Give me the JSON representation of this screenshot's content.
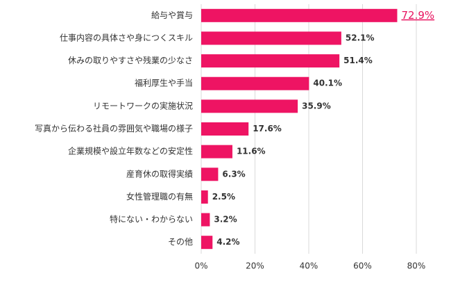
{
  "chart_data": {
    "type": "bar",
    "orientation": "horizontal",
    "categories": [
      "給与や賞与",
      "仕事内容の具体さや身につくスキル",
      "休みの取りやすさや残業の少なさ",
      "福利厚生や手当",
      "リモートワークの実施状況",
      "写真から伝わる社員の雰囲気や職場の様子",
      "企業規模や設立年数などの安定性",
      "産育休の取得実績",
      "女性管理職の有無",
      "特にない・わからない",
      "その他"
    ],
    "values": [
      72.9,
      52.1,
      51.4,
      40.1,
      35.9,
      17.6,
      11.6,
      6.3,
      2.5,
      3.2,
      4.2
    ],
    "value_labels": [
      "72.9%",
      "52.1%",
      "51.4%",
      "40.1%",
      "35.9%",
      "17.6%",
      "11.6%",
      "6.3%",
      "2.5%",
      "3.2%",
      "4.2%"
    ],
    "color": "#ee1463",
    "xlim": [
      0,
      80
    ],
    "xticks": [
      {
        "value": 0,
        "label": "0%"
      },
      {
        "value": 20,
        "label": "20%"
      },
      {
        "value": 40,
        "label": "40%"
      },
      {
        "value": 60,
        "label": "60%"
      },
      {
        "value": 80,
        "label": "80%"
      }
    ],
    "grid": true
  }
}
